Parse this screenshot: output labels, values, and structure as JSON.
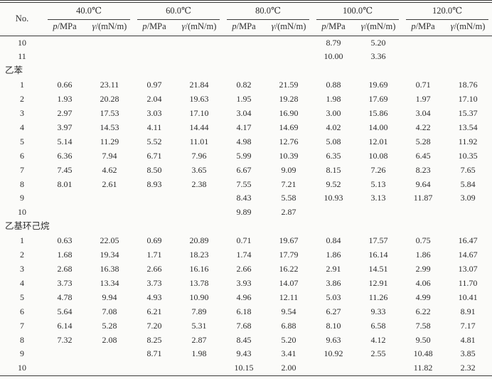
{
  "table": {
    "no_label": "No.",
    "temp_groups": [
      "40.0℃",
      "60.0℃",
      "80.0℃",
      "100.0℃",
      "120.0℃"
    ],
    "sub_header": {
      "p_var": "p",
      "p_unit": "/MPa",
      "g_var": "γ",
      "g_unit": "/(mN/m)"
    },
    "sections": [
      {
        "name": "",
        "rows": [
          {
            "no": "10",
            "v": [
              "",
              "",
              "",
              "",
              "",
              "",
              "8.79",
              "5.20",
              "",
              ""
            ]
          },
          {
            "no": "11",
            "v": [
              "",
              "",
              "",
              "",
              "",
              "",
              "10.00",
              "3.36",
              "",
              ""
            ]
          }
        ]
      },
      {
        "name": "乙苯",
        "rows": [
          {
            "no": "1",
            "v": [
              "0.66",
              "23.11",
              "0.97",
              "21.84",
              "0.82",
              "21.59",
              "0.88",
              "19.69",
              "0.71",
              "18.76"
            ]
          },
          {
            "no": "2",
            "v": [
              "1.93",
              "20.28",
              "2.04",
              "19.63",
              "1.95",
              "19.28",
              "1.98",
              "17.69",
              "1.97",
              "17.10"
            ]
          },
          {
            "no": "3",
            "v": [
              "2.97",
              "17.53",
              "3.03",
              "17.10",
              "3.04",
              "16.90",
              "3.00",
              "15.86",
              "3.04",
              "15.37"
            ]
          },
          {
            "no": "4",
            "v": [
              "3.97",
              "14.53",
              "4.11",
              "14.44",
              "4.17",
              "14.69",
              "4.02",
              "14.00",
              "4.22",
              "13.54"
            ]
          },
          {
            "no": "5",
            "v": [
              "5.14",
              "11.29",
              "5.52",
              "11.01",
              "4.98",
              "12.76",
              "5.08",
              "12.01",
              "5.28",
              "11.92"
            ]
          },
          {
            "no": "6",
            "v": [
              "6.36",
              "7.94",
              "6.71",
              "7.96",
              "5.99",
              "10.39",
              "6.35",
              "10.08",
              "6.45",
              "10.35"
            ]
          },
          {
            "no": "7",
            "v": [
              "7.45",
              "4.62",
              "8.50",
              "3.65",
              "6.67",
              "9.09",
              "8.15",
              "7.26",
              "8.23",
              "7.65"
            ]
          },
          {
            "no": "8",
            "v": [
              "8.01",
              "2.61",
              "8.93",
              "2.38",
              "7.55",
              "7.21",
              "9.52",
              "5.13",
              "9.64",
              "5.84"
            ]
          },
          {
            "no": "9",
            "v": [
              "",
              "",
              "",
              "",
              "8.43",
              "5.58",
              "10.93",
              "3.13",
              "11.87",
              "3.09"
            ]
          },
          {
            "no": "10",
            "v": [
              "",
              "",
              "",
              "",
              "9.89",
              "2.87",
              "",
              "",
              "",
              ""
            ]
          }
        ]
      },
      {
        "name": "乙基环己烷",
        "rows": [
          {
            "no": "1",
            "v": [
              "0.63",
              "22.05",
              "0.69",
              "20.89",
              "0.71",
              "19.67",
              "0.84",
              "17.57",
              "0.75",
              "16.47"
            ]
          },
          {
            "no": "2",
            "v": [
              "1.68",
              "19.34",
              "1.71",
              "18.23",
              "1.74",
              "17.79",
              "1.86",
              "16.14",
              "1.86",
              "14.67"
            ]
          },
          {
            "no": "3",
            "v": [
              "2.68",
              "16.38",
              "2.66",
              "16.16",
              "2.66",
              "16.22",
              "2.91",
              "14.51",
              "2.99",
              "13.07"
            ]
          },
          {
            "no": "4",
            "v": [
              "3.73",
              "13.34",
              "3.73",
              "13.78",
              "3.93",
              "14.07",
              "3.86",
              "12.91",
              "4.06",
              "11.70"
            ]
          },
          {
            "no": "5",
            "v": [
              "4.78",
              "9.94",
              "4.93",
              "10.90",
              "4.96",
              "12.11",
              "5.03",
              "11.26",
              "4.99",
              "10.41"
            ]
          },
          {
            "no": "6",
            "v": [
              "5.64",
              "7.08",
              "6.21",
              "7.89",
              "6.18",
              "9.54",
              "6.27",
              "9.33",
              "6.22",
              "8.91"
            ]
          },
          {
            "no": "7",
            "v": [
              "6.14",
              "5.28",
              "7.20",
              "5.31",
              "7.68",
              "6.88",
              "8.10",
              "6.58",
              "7.58",
              "7.17"
            ]
          },
          {
            "no": "8",
            "v": [
              "7.32",
              "2.08",
              "8.25",
              "2.87",
              "8.45",
              "5.20",
              "9.63",
              "4.12",
              "9.50",
              "4.81"
            ]
          },
          {
            "no": "9",
            "v": [
              "",
              "",
              "8.71",
              "1.98",
              "9.43",
              "3.41",
              "10.92",
              "2.55",
              "10.48",
              "3.85"
            ]
          },
          {
            "no": "10",
            "v": [
              "",
              "",
              "",
              "",
              "10.15",
              "2.00",
              "",
              "",
              "11.82",
              "2.32"
            ]
          }
        ]
      }
    ]
  }
}
